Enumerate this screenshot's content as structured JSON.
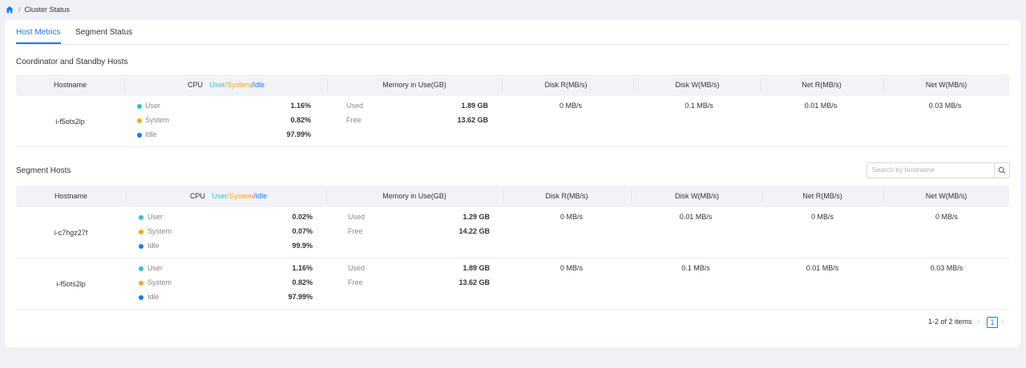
{
  "breadcrumb": {
    "separator": "/",
    "current": "Cluster Status"
  },
  "tabs": [
    {
      "label": "Host Metrics",
      "active": true
    },
    {
      "label": "Segment Status",
      "active": false
    }
  ],
  "colors": {
    "accent": "#1677ff",
    "user": "#2fc3c9",
    "system": "#f5a623",
    "idle": "#1677ff"
  },
  "columns": {
    "hostname": "Hostname",
    "cpu": "CPU",
    "cpu_user": "User",
    "cpu_sep1": "/",
    "cpu_system": "System",
    "cpu_sep2": "/",
    "cpu_idle": "Idle",
    "memory": "Memory in Use(GB)",
    "disk_r": "Disk R(MB/s)",
    "disk_w": "Disk W(MB/s)",
    "net_r": "Net R(MB/s)",
    "net_w": "Net W(MB/s)"
  },
  "labels": {
    "user": "User",
    "system": "System",
    "idle": "Idle",
    "used": "Used",
    "free": "Free"
  },
  "coordinator": {
    "title": "Coordinator and Standby Hosts",
    "rows": [
      {
        "hostname": "i-f5ots2lp",
        "user": "1.16%",
        "system": "0.82%",
        "idle": "97.99%",
        "used": "1.89 GB",
        "free": "13.62 GB",
        "disk_r": "0 MB/s",
        "disk_w": "0.1 MB/s",
        "net_r": "0.01 MB/s",
        "net_w": "0.03 MB/s"
      }
    ]
  },
  "segment": {
    "title": "Segment Hosts",
    "search_placeholder": "Search by hostname",
    "rows": [
      {
        "hostname": "i-c7hgz27f",
        "user": "0.02%",
        "system": "0.07%",
        "idle": "99.9%",
        "used": "1.29 GB",
        "free": "14.22 GB",
        "disk_r": "0 MB/s",
        "disk_w": "0.01 MB/s",
        "net_r": "0 MB/s",
        "net_w": "0 MB/s"
      },
      {
        "hostname": "i-f5ots2lp",
        "user": "1.16%",
        "system": "0.82%",
        "idle": "97.99%",
        "used": "1.89 GB",
        "free": "13.62 GB",
        "disk_r": "0 MB/s",
        "disk_w": "0.1 MB/s",
        "net_r": "0.01 MB/s",
        "net_w": "0.03 MB/s"
      }
    ]
  },
  "pagination": {
    "summary": "1-2 of 2 items",
    "page": "1",
    "prev_icon": "chevron-left-icon",
    "next_icon": "chevron-right-icon"
  }
}
